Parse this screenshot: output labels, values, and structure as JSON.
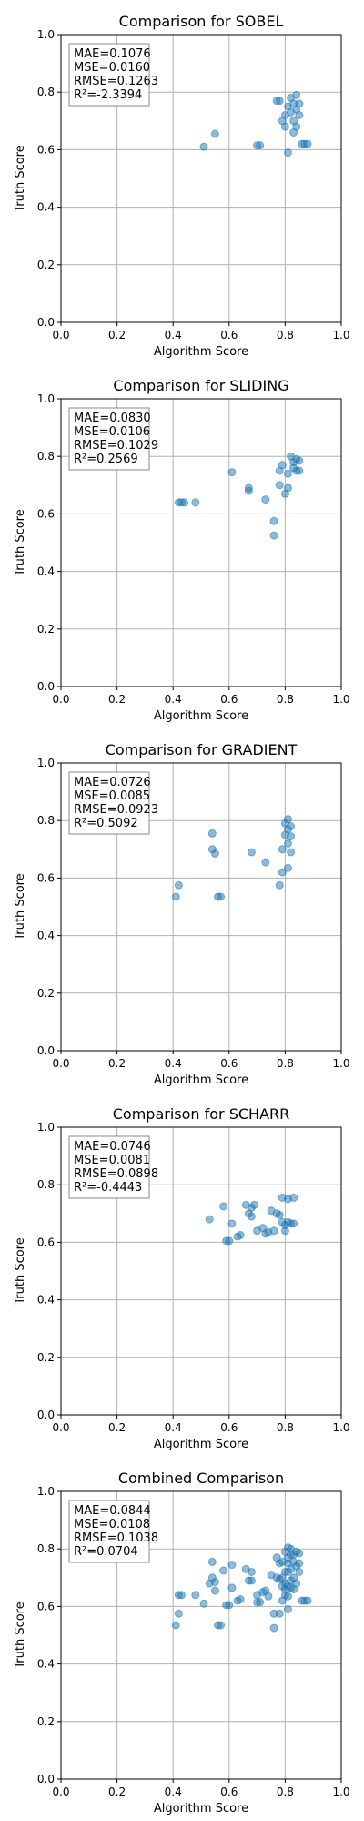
{
  "chart_data": [
    {
      "type": "scatter",
      "title": "Comparison for SOBEL",
      "xlabel": "Algorithm Score",
      "ylabel": "Truth Score",
      "xlim": [
        0,
        1
      ],
      "ylim": [
        0,
        1
      ],
      "ticks": [
        "0.0",
        "0.2",
        "0.4",
        "0.6",
        "0.8",
        "1.0"
      ],
      "grid": true,
      "color": "#1f77b4",
      "stats": [
        "MAE=0.1076",
        "MSE=0.0160",
        "RMSE=0.1263",
        "R²=-2.3394"
      ],
      "points": [
        [
          0.51,
          0.61
        ],
        [
          0.55,
          0.655
        ],
        [
          0.7,
          0.615
        ],
        [
          0.71,
          0.615
        ],
        [
          0.77,
          0.77
        ],
        [
          0.78,
          0.77
        ],
        [
          0.79,
          0.7
        ],
        [
          0.8,
          0.68
        ],
        [
          0.8,
          0.72
        ],
        [
          0.81,
          0.75
        ],
        [
          0.81,
          0.59
        ],
        [
          0.82,
          0.73
        ],
        [
          0.82,
          0.78
        ],
        [
          0.83,
          0.76
        ],
        [
          0.83,
          0.7
        ],
        [
          0.83,
          0.66
        ],
        [
          0.84,
          0.79
        ],
        [
          0.84,
          0.74
        ],
        [
          0.84,
          0.68
        ],
        [
          0.85,
          0.72
        ],
        [
          0.85,
          0.76
        ],
        [
          0.86,
          0.62
        ],
        [
          0.87,
          0.62
        ],
        [
          0.88,
          0.62
        ]
      ]
    },
    {
      "type": "scatter",
      "title": "Comparison for SLIDING",
      "xlabel": "Algorithm Score",
      "ylabel": "Truth Score",
      "xlim": [
        0,
        1
      ],
      "ylim": [
        0,
        1
      ],
      "ticks": [
        "0.0",
        "0.2",
        "0.4",
        "0.6",
        "0.8",
        "1.0"
      ],
      "grid": true,
      "color": "#1f77b4",
      "stats": [
        "MAE=0.0830",
        "MSE=0.0106",
        "RMSE=0.1029",
        "R²=0.2569"
      ],
      "points": [
        [
          0.42,
          0.64
        ],
        [
          0.43,
          0.64
        ],
        [
          0.44,
          0.64
        ],
        [
          0.48,
          0.64
        ],
        [
          0.61,
          0.745
        ],
        [
          0.67,
          0.69
        ],
        [
          0.67,
          0.68
        ],
        [
          0.73,
          0.65
        ],
        [
          0.76,
          0.575
        ],
        [
          0.76,
          0.525
        ],
        [
          0.78,
          0.7
        ],
        [
          0.78,
          0.75
        ],
        [
          0.79,
          0.77
        ],
        [
          0.8,
          0.67
        ],
        [
          0.81,
          0.69
        ],
        [
          0.81,
          0.74
        ],
        [
          0.82,
          0.8
        ],
        [
          0.83,
          0.76
        ],
        [
          0.83,
          0.78
        ],
        [
          0.84,
          0.75
        ],
        [
          0.84,
          0.79
        ],
        [
          0.85,
          0.75
        ],
        [
          0.85,
          0.785
        ]
      ]
    },
    {
      "type": "scatter",
      "title": "Comparison for GRADIENT",
      "xlabel": "Algorithm Score",
      "ylabel": "Truth Score",
      "xlim": [
        0,
        1
      ],
      "ylim": [
        0,
        1
      ],
      "ticks": [
        "0.0",
        "0.2",
        "0.4",
        "0.6",
        "0.8",
        "1.0"
      ],
      "grid": true,
      "color": "#1f77b4",
      "stats": [
        "MAE=0.0726",
        "MSE=0.0085",
        "RMSE=0.0923",
        "R²=0.5092"
      ],
      "points": [
        [
          0.41,
          0.535
        ],
        [
          0.42,
          0.575
        ],
        [
          0.54,
          0.755
        ],
        [
          0.54,
          0.7
        ],
        [
          0.55,
          0.685
        ],
        [
          0.56,
          0.535
        ],
        [
          0.57,
          0.535
        ],
        [
          0.68,
          0.69
        ],
        [
          0.73,
          0.655
        ],
        [
          0.78,
          0.575
        ],
        [
          0.79,
          0.62
        ],
        [
          0.79,
          0.7
        ],
        [
          0.8,
          0.75
        ],
        [
          0.8,
          0.79
        ],
        [
          0.81,
          0.635
        ],
        [
          0.81,
          0.72
        ],
        [
          0.81,
          0.77
        ],
        [
          0.81,
          0.805
        ],
        [
          0.82,
          0.69
        ],
        [
          0.82,
          0.745
        ],
        [
          0.82,
          0.78
        ]
      ]
    },
    {
      "type": "scatter",
      "title": "Comparison for SCHARR",
      "xlabel": "Algorithm Score",
      "ylabel": "Truth Score",
      "xlim": [
        0,
        1
      ],
      "ylim": [
        0,
        1
      ],
      "ticks": [
        "0.0",
        "0.2",
        "0.4",
        "0.6",
        "0.8",
        "1.0"
      ],
      "grid": true,
      "color": "#1f77b4",
      "stats": [
        "MAE=0.0746",
        "MSE=0.0081",
        "RMSE=0.0898",
        "R²=-0.4443"
      ],
      "points": [
        [
          0.53,
          0.68
        ],
        [
          0.58,
          0.725
        ],
        [
          0.59,
          0.605
        ],
        [
          0.6,
          0.605
        ],
        [
          0.61,
          0.665
        ],
        [
          0.63,
          0.62
        ],
        [
          0.64,
          0.625
        ],
        [
          0.66,
          0.73
        ],
        [
          0.67,
          0.7
        ],
        [
          0.68,
          0.69
        ],
        [
          0.68,
          0.72
        ],
        [
          0.69,
          0.73
        ],
        [
          0.7,
          0.64
        ],
        [
          0.72,
          0.65
        ],
        [
          0.73,
          0.63
        ],
        [
          0.74,
          0.635
        ],
        [
          0.75,
          0.71
        ],
        [
          0.76,
          0.64
        ],
        [
          0.77,
          0.7
        ],
        [
          0.78,
          0.695
        ],
        [
          0.79,
          0.67
        ],
        [
          0.79,
          0.755
        ],
        [
          0.8,
          0.64
        ],
        [
          0.8,
          0.66
        ],
        [
          0.81,
          0.67
        ],
        [
          0.81,
          0.75
        ],
        [
          0.82,
          0.665
        ],
        [
          0.83,
          0.755
        ],
        [
          0.83,
          0.665
        ]
      ]
    },
    {
      "type": "scatter",
      "title": "Combined Comparison",
      "xlabel": "Algorithm Score",
      "ylabel": "Truth Score",
      "xlim": [
        0,
        1
      ],
      "ylim": [
        0,
        1
      ],
      "ticks": [
        "0.0",
        "0.2",
        "0.4",
        "0.6",
        "0.8",
        "1.0"
      ],
      "grid": true,
      "color": "#1f77b4",
      "stats": [
        "MAE=0.0844",
        "MSE=0.0108",
        "RMSE=0.1038",
        "R²=0.0704"
      ],
      "points": [
        [
          0.41,
          0.535
        ],
        [
          0.42,
          0.575
        ],
        [
          0.42,
          0.64
        ],
        [
          0.43,
          0.64
        ],
        [
          0.48,
          0.64
        ],
        [
          0.51,
          0.61
        ],
        [
          0.53,
          0.68
        ],
        [
          0.54,
          0.755
        ],
        [
          0.54,
          0.7
        ],
        [
          0.55,
          0.685
        ],
        [
          0.55,
          0.655
        ],
        [
          0.56,
          0.535
        ],
        [
          0.57,
          0.535
        ],
        [
          0.58,
          0.725
        ],
        [
          0.59,
          0.605
        ],
        [
          0.6,
          0.605
        ],
        [
          0.61,
          0.665
        ],
        [
          0.61,
          0.745
        ],
        [
          0.63,
          0.62
        ],
        [
          0.64,
          0.625
        ],
        [
          0.66,
          0.73
        ],
        [
          0.67,
          0.69
        ],
        [
          0.68,
          0.72
        ],
        [
          0.68,
          0.69
        ],
        [
          0.7,
          0.615
        ],
        [
          0.7,
          0.64
        ],
        [
          0.71,
          0.615
        ],
        [
          0.72,
          0.65
        ],
        [
          0.73,
          0.655
        ],
        [
          0.74,
          0.635
        ],
        [
          0.75,
          0.71
        ],
        [
          0.76,
          0.575
        ],
        [
          0.76,
          0.525
        ],
        [
          0.77,
          0.7
        ],
        [
          0.77,
          0.77
        ],
        [
          0.78,
          0.575
        ],
        [
          0.78,
          0.695
        ],
        [
          0.78,
          0.75
        ],
        [
          0.79,
          0.62
        ],
        [
          0.79,
          0.67
        ],
        [
          0.79,
          0.7
        ],
        [
          0.79,
          0.755
        ],
        [
          0.8,
          0.64
        ],
        [
          0.8,
          0.66
        ],
        [
          0.8,
          0.68
        ],
        [
          0.8,
          0.72
        ],
        [
          0.8,
          0.79
        ],
        [
          0.81,
          0.59
        ],
        [
          0.81,
          0.635
        ],
        [
          0.81,
          0.67
        ],
        [
          0.81,
          0.72
        ],
        [
          0.81,
          0.75
        ],
        [
          0.81,
          0.77
        ],
        [
          0.81,
          0.805
        ],
        [
          0.82,
          0.665
        ],
        [
          0.82,
          0.69
        ],
        [
          0.82,
          0.73
        ],
        [
          0.82,
          0.78
        ],
        [
          0.82,
          0.8
        ],
        [
          0.83,
          0.66
        ],
        [
          0.83,
          0.7
        ],
        [
          0.83,
          0.755
        ],
        [
          0.83,
          0.78
        ],
        [
          0.84,
          0.68
        ],
        [
          0.84,
          0.74
        ],
        [
          0.84,
          0.79
        ],
        [
          0.85,
          0.72
        ],
        [
          0.85,
          0.75
        ],
        [
          0.85,
          0.785
        ],
        [
          0.86,
          0.62
        ],
        [
          0.87,
          0.62
        ],
        [
          0.88,
          0.62
        ]
      ]
    }
  ]
}
